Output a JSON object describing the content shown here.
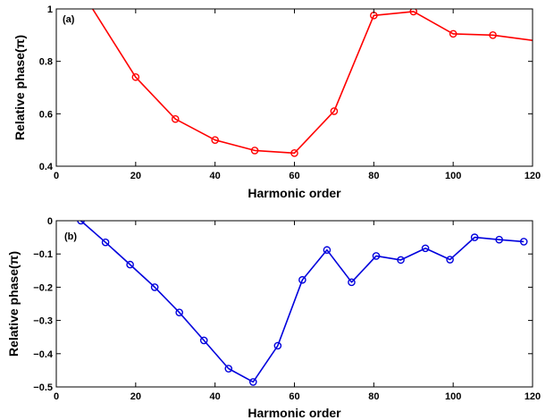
{
  "chart_data": [
    {
      "type": "line",
      "panel_label": "(a)",
      "xlabel": "Harmonic order",
      "ylabel": "Relative phase(π)",
      "xlim": [
        0,
        120
      ],
      "ylim": [
        0.4,
        1.0
      ],
      "xticks": [
        0,
        20,
        40,
        60,
        80,
        100,
        120
      ],
      "xtick_labels": [
        "0",
        "20",
        "40",
        "60",
        "80",
        "100",
        "120"
      ],
      "yticks": [
        0.4,
        0.6,
        0.8,
        1.0
      ],
      "ytick_labels": [
        "0.4",
        "0.6",
        "0.8",
        "1"
      ],
      "grid": false,
      "series": [
        {
          "color": "#ff0000",
          "marker": "circle",
          "x": [
            5,
            20,
            30,
            40,
            50,
            60,
            70,
            80,
            90,
            100,
            110,
            120
          ],
          "y": [
            1.1,
            0.74,
            0.58,
            0.5,
            0.46,
            0.45,
            0.61,
            0.975,
            0.99,
            0.905,
            0.9,
            0.88
          ],
          "marker_x": [
            20,
            30,
            40,
            50,
            60,
            70,
            80,
            90,
            100,
            110
          ],
          "marker_y": [
            0.74,
            0.58,
            0.5,
            0.46,
            0.45,
            0.61,
            0.975,
            0.99,
            0.905,
            0.9
          ]
        }
      ]
    },
    {
      "type": "line",
      "panel_label": "(b)",
      "xlabel": "Harmonic order",
      "ylabel": "Relative phase(π)",
      "xlim": [
        0,
        120
      ],
      "ylim": [
        -0.5,
        0
      ],
      "xticks": [
        0,
        20,
        40,
        60,
        80,
        100,
        120
      ],
      "xtick_labels": [
        "0",
        "20",
        "40",
        "60",
        "80",
        "100",
        "120"
      ],
      "yticks": [
        -0.5,
        -0.4,
        -0.3,
        -0.2,
        -0.1,
        0
      ],
      "ytick_labels": [
        "−0.5",
        "−0.4",
        "−0.3",
        "−0.2",
        "−0.1",
        "0"
      ],
      "grid": false,
      "series": [
        {
          "color": "#0000dd",
          "marker": "circle",
          "x": [
            6.2,
            12.4,
            18.6,
            24.8,
            31,
            37.2,
            43.4,
            49.6,
            55.8,
            62,
            68.2,
            74.4,
            80.6,
            86.8,
            93,
            99.2,
            105.4,
            111.6,
            117.8
          ],
          "y": [
            0.0,
            -0.065,
            -0.132,
            -0.2,
            -0.276,
            -0.36,
            -0.445,
            -0.485,
            -0.376,
            -0.178,
            -0.088,
            -0.185,
            -0.106,
            -0.118,
            -0.083,
            -0.117,
            -0.05,
            -0.057,
            -0.063
          ],
          "marker_x": [
            6.2,
            12.4,
            18.6,
            24.8,
            31,
            37.2,
            43.4,
            49.6,
            55.8,
            62,
            68.2,
            74.4,
            80.6,
            86.8,
            93,
            99.2,
            105.4,
            111.6,
            117.8
          ],
          "marker_y": [
            0.0,
            -0.065,
            -0.132,
            -0.2,
            -0.276,
            -0.36,
            -0.445,
            -0.485,
            -0.376,
            -0.178,
            -0.088,
            -0.185,
            -0.106,
            -0.118,
            -0.083,
            -0.117,
            -0.05,
            -0.057,
            -0.063
          ]
        }
      ]
    }
  ]
}
